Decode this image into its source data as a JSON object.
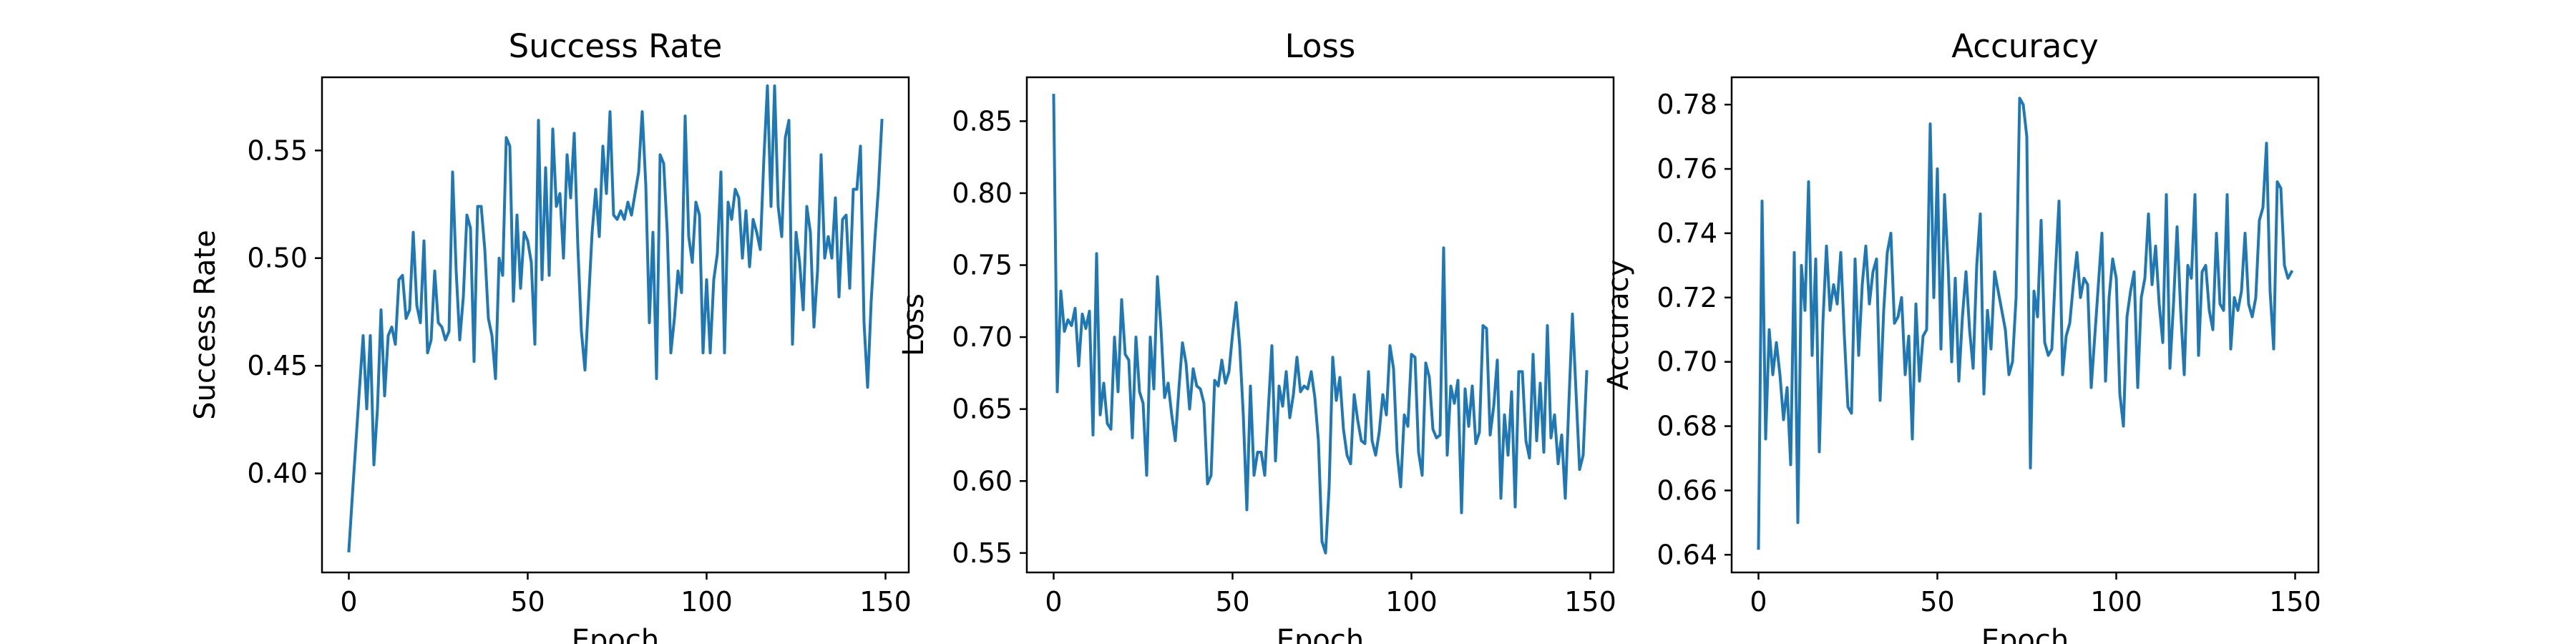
{
  "chart_data": [
    {
      "type": "line",
      "title": "Success Rate",
      "xlabel": "Epoch",
      "ylabel": "Success Rate",
      "xlim": [
        -7.5,
        156.5
      ],
      "ylim": [
        0.354,
        0.584
      ],
      "xticks": [
        0,
        50,
        100,
        150
      ],
      "yticks": [
        0.4,
        0.45,
        0.5,
        0.55
      ],
      "xtick_labels": [
        "0",
        "50",
        "100",
        "150"
      ],
      "ytick_labels": [
        "0.40",
        "0.45",
        "0.50",
        "0.55"
      ],
      "grid": false,
      "color": "#1f77b4",
      "series": [
        {
          "x": [
            0,
            1,
            2,
            3,
            4,
            5,
            6,
            7,
            8,
            9,
            10,
            11,
            12,
            13,
            14,
            15,
            16,
            17,
            18,
            19,
            20,
            21,
            22,
            23,
            24,
            25,
            26,
            27,
            28,
            29,
            30,
            31,
            32,
            33,
            34,
            35,
            36,
            37,
            38,
            39,
            40,
            41,
            42,
            43,
            44,
            45,
            46,
            47,
            48,
            49,
            50,
            51,
            52,
            53,
            54,
            55,
            56,
            57,
            58,
            59,
            60,
            61,
            62,
            63,
            64,
            65,
            66,
            67,
            68,
            69,
            70,
            71,
            72,
            73,
            74,
            75,
            76,
            77,
            78,
            79,
            80,
            81,
            82,
            83,
            84,
            85,
            86,
            87,
            88,
            89,
            90,
            91,
            92,
            93,
            94,
            95,
            96,
            97,
            98,
            99,
            100,
            101,
            102,
            103,
            104,
            105,
            106,
            107,
            108,
            109,
            110,
            111,
            112,
            113,
            114,
            115,
            116,
            117,
            118,
            119,
            120,
            121,
            122,
            123,
            124,
            125,
            126,
            127,
            128,
            129,
            130,
            131,
            132,
            133,
            134,
            135,
            136,
            137,
            138,
            139,
            140,
            141,
            142,
            143,
            144,
            145,
            146,
            147,
            148,
            149
          ],
          "values": [
            0.364,
            0.39,
            0.415,
            0.44,
            0.464,
            0.43,
            0.464,
            0.404,
            0.43,
            0.476,
            0.436,
            0.464,
            0.468,
            0.46,
            0.49,
            0.492,
            0.472,
            0.476,
            0.512,
            0.478,
            0.47,
            0.508,
            0.456,
            0.462,
            0.494,
            0.47,
            0.468,
            0.462,
            0.466,
            0.54,
            0.494,
            0.462,
            0.482,
            0.52,
            0.514,
            0.452,
            0.524,
            0.524,
            0.504,
            0.472,
            0.464,
            0.444,
            0.5,
            0.492,
            0.556,
            0.552,
            0.48,
            0.52,
            0.486,
            0.512,
            0.508,
            0.498,
            0.46,
            0.564,
            0.49,
            0.542,
            0.492,
            0.56,
            0.524,
            0.53,
            0.5,
            0.548,
            0.528,
            0.558,
            0.506,
            0.466,
            0.448,
            0.48,
            0.512,
            0.532,
            0.51,
            0.552,
            0.53,
            0.568,
            0.52,
            0.518,
            0.522,
            0.518,
            0.526,
            0.52,
            0.53,
            0.54,
            0.568,
            0.534,
            0.47,
            0.512,
            0.444,
            0.548,
            0.544,
            0.512,
            0.456,
            0.472,
            0.494,
            0.484,
            0.566,
            0.51,
            0.498,
            0.526,
            0.52,
            0.456,
            0.49,
            0.456,
            0.49,
            0.502,
            0.54,
            0.456,
            0.526,
            0.518,
            0.532,
            0.528,
            0.5,
            0.522,
            0.496,
            0.518,
            0.512,
            0.504,
            0.546,
            0.58,
            0.524,
            0.58,
            0.524,
            0.51,
            0.556,
            0.564,
            0.46,
            0.512,
            0.498,
            0.476,
            0.524,
            0.512,
            0.468,
            0.494,
            0.548,
            0.5,
            0.51,
            0.5,
            0.528,
            0.482,
            0.518,
            0.52,
            0.486,
            0.532,
            0.532,
            0.552,
            0.47,
            0.44,
            0.48,
            0.508,
            0.532,
            0.564
          ]
        }
      ]
    },
    {
      "type": "line",
      "title": "Loss",
      "xlabel": "Epoch",
      "ylabel": "Loss",
      "xlim": [
        -7.5,
        156.5
      ],
      "ylim": [
        0.5365,
        0.8805
      ],
      "xticks": [
        0,
        50,
        100,
        150
      ],
      "yticks": [
        0.55,
        0.6,
        0.65,
        0.7,
        0.75,
        0.8,
        0.85
      ],
      "xtick_labels": [
        "0",
        "50",
        "100",
        "150"
      ],
      "ytick_labels": [
        "0.55",
        "0.60",
        "0.65",
        "0.70",
        "0.75",
        "0.80",
        "0.85"
      ],
      "grid": false,
      "color": "#1f77b4",
      "series": [
        {
          "x": [
            0,
            1,
            2,
            3,
            4,
            5,
            6,
            7,
            8,
            9,
            10,
            11,
            12,
            13,
            14,
            15,
            16,
            17,
            18,
            19,
            20,
            21,
            22,
            23,
            24,
            25,
            26,
            27,
            28,
            29,
            30,
            31,
            32,
            33,
            34,
            35,
            36,
            37,
            38,
            39,
            40,
            41,
            42,
            43,
            44,
            45,
            46,
            47,
            48,
            49,
            50,
            51,
            52,
            53,
            54,
            55,
            56,
            57,
            58,
            59,
            60,
            61,
            62,
            63,
            64,
            65,
            66,
            67,
            68,
            69,
            70,
            71,
            72,
            73,
            74,
            75,
            76,
            77,
            78,
            79,
            80,
            81,
            82,
            83,
            84,
            85,
            86,
            87,
            88,
            89,
            90,
            91,
            92,
            93,
            94,
            95,
            96,
            97,
            98,
            99,
            100,
            101,
            102,
            103,
            104,
            105,
            106,
            107,
            108,
            109,
            110,
            111,
            112,
            113,
            114,
            115,
            116,
            117,
            118,
            119,
            120,
            121,
            122,
            123,
            124,
            125,
            126,
            127,
            128,
            129,
            130,
            131,
            132,
            133,
            134,
            135,
            136,
            137,
            138,
            139,
            140,
            141,
            142,
            143,
            144,
            145,
            146,
            147,
            148,
            149
          ],
          "values": [
            0.868,
            0.662,
            0.732,
            0.704,
            0.712,
            0.708,
            0.72,
            0.68,
            0.716,
            0.706,
            0.718,
            0.632,
            0.758,
            0.646,
            0.668,
            0.64,
            0.636,
            0.7,
            0.662,
            0.726,
            0.688,
            0.684,
            0.63,
            0.7,
            0.662,
            0.654,
            0.604,
            0.7,
            0.664,
            0.742,
            0.706,
            0.658,
            0.668,
            0.646,
            0.628,
            0.664,
            0.696,
            0.682,
            0.65,
            0.678,
            0.666,
            0.664,
            0.654,
            0.598,
            0.604,
            0.67,
            0.666,
            0.684,
            0.668,
            0.676,
            0.702,
            0.724,
            0.694,
            0.646,
            0.58,
            0.666,
            0.604,
            0.62,
            0.62,
            0.604,
            0.65,
            0.694,
            0.614,
            0.666,
            0.652,
            0.676,
            0.644,
            0.66,
            0.686,
            0.662,
            0.666,
            0.664,
            0.676,
            0.658,
            0.628,
            0.558,
            0.55,
            0.596,
            0.686,
            0.656,
            0.672,
            0.636,
            0.618,
            0.612,
            0.66,
            0.642,
            0.628,
            0.626,
            0.676,
            0.628,
            0.618,
            0.634,
            0.66,
            0.646,
            0.694,
            0.678,
            0.62,
            0.596,
            0.646,
            0.638,
            0.688,
            0.686,
            0.62,
            0.604,
            0.682,
            0.672,
            0.636,
            0.63,
            0.632,
            0.762,
            0.618,
            0.666,
            0.654,
            0.67,
            0.578,
            0.664,
            0.638,
            0.666,
            0.626,
            0.634,
            0.708,
            0.706,
            0.632,
            0.652,
            0.684,
            0.588,
            0.646,
            0.618,
            0.662,
            0.582,
            0.676,
            0.676,
            0.628,
            0.616,
            0.688,
            0.628,
            0.668,
            0.62,
            0.708,
            0.63,
            0.646,
            0.612,
            0.632,
            0.588,
            0.654,
            0.716,
            0.662,
            0.608,
            0.618,
            0.676
          ]
        }
      ]
    },
    {
      "type": "line",
      "title": "Accuracy",
      "xlabel": "Epoch",
      "ylabel": "Accuracy",
      "xlim": [
        -7.5,
        156.5
      ],
      "ylim": [
        0.6345,
        0.7885
      ],
      "xticks": [
        0,
        50,
        100,
        150
      ],
      "yticks": [
        0.64,
        0.66,
        0.68,
        0.7,
        0.72,
        0.74,
        0.76,
        0.78
      ],
      "xtick_labels": [
        "0",
        "50",
        "100",
        "150"
      ],
      "ytick_labels": [
        "0.64",
        "0.66",
        "0.68",
        "0.70",
        "0.72",
        "0.74",
        "0.76",
        "0.78"
      ],
      "grid": false,
      "color": "#1f77b4",
      "series": [
        {
          "x": [
            0,
            1,
            2,
            3,
            4,
            5,
            6,
            7,
            8,
            9,
            10,
            11,
            12,
            13,
            14,
            15,
            16,
            17,
            18,
            19,
            20,
            21,
            22,
            23,
            24,
            25,
            26,
            27,
            28,
            29,
            30,
            31,
            32,
            33,
            34,
            35,
            36,
            37,
            38,
            39,
            40,
            41,
            42,
            43,
            44,
            45,
            46,
            47,
            48,
            49,
            50,
            51,
            52,
            53,
            54,
            55,
            56,
            57,
            58,
            59,
            60,
            61,
            62,
            63,
            64,
            65,
            66,
            67,
            68,
            69,
            70,
            71,
            72,
            73,
            74,
            75,
            76,
            77,
            78,
            79,
            80,
            81,
            82,
            83,
            84,
            85,
            86,
            87,
            88,
            89,
            90,
            91,
            92,
            93,
            94,
            95,
            96,
            97,
            98,
            99,
            100,
            101,
            102,
            103,
            104,
            105,
            106,
            107,
            108,
            109,
            110,
            111,
            112,
            113,
            114,
            115,
            116,
            117,
            118,
            119,
            120,
            121,
            122,
            123,
            124,
            125,
            126,
            127,
            128,
            129,
            130,
            131,
            132,
            133,
            134,
            135,
            136,
            137,
            138,
            139,
            140,
            141,
            142,
            143,
            144,
            145,
            146,
            147,
            148,
            149
          ],
          "values": [
            0.642,
            0.75,
            0.676,
            0.71,
            0.696,
            0.706,
            0.696,
            0.682,
            0.692,
            0.668,
            0.734,
            0.65,
            0.73,
            0.716,
            0.756,
            0.702,
            0.732,
            0.672,
            0.712,
            0.736,
            0.716,
            0.724,
            0.718,
            0.734,
            0.708,
            0.686,
            0.684,
            0.732,
            0.702,
            0.724,
            0.736,
            0.718,
            0.728,
            0.732,
            0.688,
            0.716,
            0.734,
            0.74,
            0.712,
            0.714,
            0.72,
            0.696,
            0.708,
            0.676,
            0.718,
            0.694,
            0.708,
            0.71,
            0.774,
            0.72,
            0.76,
            0.704,
            0.752,
            0.73,
            0.7,
            0.726,
            0.694,
            0.714,
            0.728,
            0.71,
            0.698,
            0.73,
            0.746,
            0.69,
            0.716,
            0.704,
            0.728,
            0.722,
            0.716,
            0.71,
            0.696,
            0.7,
            0.72,
            0.782,
            0.78,
            0.77,
            0.667,
            0.722,
            0.714,
            0.744,
            0.706,
            0.702,
            0.704,
            0.728,
            0.75,
            0.696,
            0.708,
            0.712,
            0.724,
            0.734,
            0.72,
            0.726,
            0.724,
            0.692,
            0.708,
            0.724,
            0.74,
            0.694,
            0.72,
            0.732,
            0.726,
            0.69,
            0.68,
            0.714,
            0.722,
            0.728,
            0.692,
            0.72,
            0.726,
            0.746,
            0.724,
            0.736,
            0.718,
            0.706,
            0.752,
            0.698,
            0.718,
            0.742,
            0.716,
            0.696,
            0.73,
            0.726,
            0.752,
            0.702,
            0.728,
            0.73,
            0.716,
            0.71,
            0.74,
            0.718,
            0.716,
            0.752,
            0.704,
            0.72,
            0.716,
            0.722,
            0.74,
            0.718,
            0.714,
            0.72,
            0.744,
            0.748,
            0.768,
            0.722,
            0.704,
            0.756,
            0.754,
            0.73,
            0.726,
            0.728
          ]
        }
      ]
    }
  ]
}
